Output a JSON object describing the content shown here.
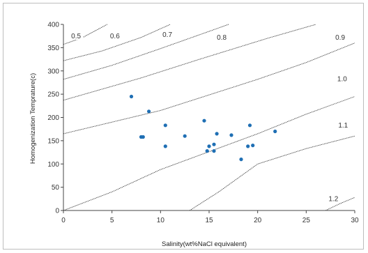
{
  "chart_data": {
    "type": "scatter",
    "title": "",
    "xlabel": "Salinity(wt%NaCl equivalent)",
    "ylabel": "Homogenization Temprature(c)",
    "xlim": [
      0,
      30
    ],
    "ylim": [
      0,
      400
    ],
    "xticks": [
      "0",
      "5",
      "10",
      "15",
      "20",
      "25",
      "30"
    ],
    "yticks": [
      "0",
      "50",
      "100",
      "150",
      "200",
      "250",
      "300",
      "350",
      "400"
    ],
    "grid": false,
    "legend": "none",
    "point_color": "#1f6fb4",
    "series": [
      {
        "points": [
          [
            7.0,
            245
          ],
          [
            8.8,
            213
          ],
          [
            8.0,
            158
          ],
          [
            8.2,
            158
          ],
          [
            10.5,
            183
          ],
          [
            10.5,
            138
          ],
          [
            12.5,
            160
          ],
          [
            14.5,
            193
          ],
          [
            14.8,
            128
          ],
          [
            15.0,
            138
          ],
          [
            15.5,
            142
          ],
          [
            15.5,
            128
          ],
          [
            15.8,
            165
          ],
          [
            17.3,
            162
          ],
          [
            18.3,
            110
          ],
          [
            19.0,
            138
          ],
          [
            19.2,
            183
          ],
          [
            19.5,
            140
          ],
          [
            21.8,
            170
          ]
        ]
      }
    ],
    "contours": [
      {
        "label": "0.5",
        "points": [
          [
            0,
            357
          ],
          [
            2,
            372
          ],
          [
            4.5,
            400
          ]
        ]
      },
      {
        "label": "0.6",
        "points": [
          [
            0,
            322
          ],
          [
            4,
            343
          ],
          [
            8,
            372
          ],
          [
            11,
            400
          ]
        ]
      },
      {
        "label": "0.7",
        "points": [
          [
            0,
            282
          ],
          [
            5,
            312
          ],
          [
            10,
            348
          ],
          [
            15,
            385
          ],
          [
            17,
            400
          ]
        ]
      },
      {
        "label": "0.8",
        "points": [
          [
            0,
            237
          ],
          [
            8,
            285
          ],
          [
            14,
            325
          ],
          [
            21,
            370
          ],
          [
            26,
            400
          ]
        ]
      },
      {
        "label": "0.9",
        "points": [
          [
            0,
            165
          ],
          [
            10,
            215
          ],
          [
            20,
            282
          ],
          [
            25,
            318
          ],
          [
            30,
            360
          ]
        ]
      },
      {
        "label": "1.0",
        "points": [
          [
            0,
            0
          ],
          [
            5,
            40
          ],
          [
            10,
            88
          ],
          [
            20,
            165
          ],
          [
            25,
            207
          ],
          [
            30,
            245
          ]
        ]
      },
      {
        "label": "1.1",
        "points": [
          [
            13,
            0
          ],
          [
            16,
            40
          ],
          [
            20,
            100
          ],
          [
            25,
            133
          ],
          [
            30,
            160
          ]
        ]
      },
      {
        "label": "1.2",
        "points": [
          [
            27,
            0
          ],
          [
            28.5,
            15
          ],
          [
            30,
            28
          ]
        ]
      }
    ],
    "contour_labels": [
      {
        "text": "0.5",
        "x": 0.8,
        "y": 370
      },
      {
        "text": "0.6",
        "x": 4.8,
        "y": 370
      },
      {
        "text": "0.7",
        "x": 10.2,
        "y": 373
      },
      {
        "text": "0.8",
        "x": 15.8,
        "y": 367
      },
      {
        "text": "0.9",
        "x": 28.0,
        "y": 367
      },
      {
        "text": "1.0",
        "x": 28.2,
        "y": 278
      },
      {
        "text": "1.1",
        "x": 28.3,
        "y": 178
      },
      {
        "text": "1.2",
        "x": 27.3,
        "y": 20
      }
    ]
  }
}
